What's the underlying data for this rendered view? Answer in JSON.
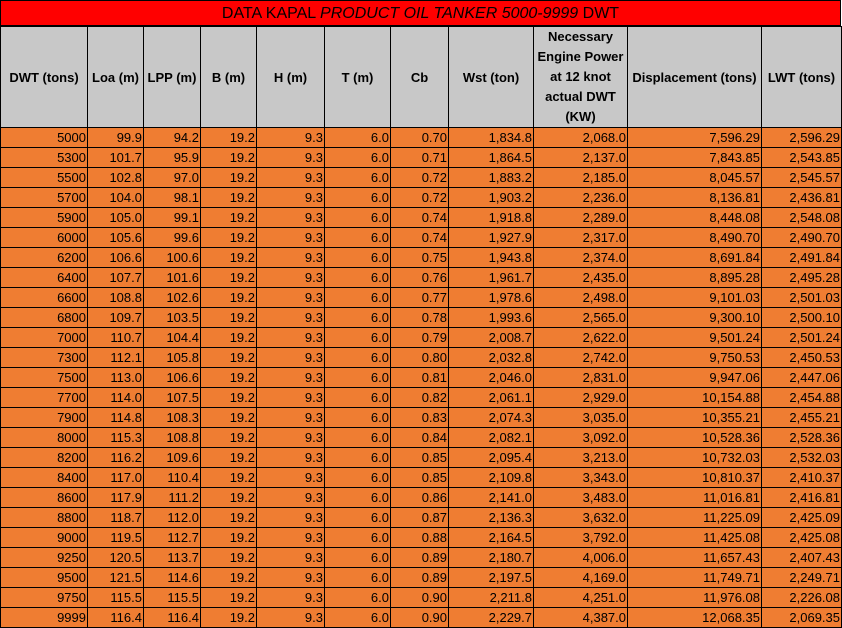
{
  "title": {
    "prefix": "DATA KAPAL ",
    "italic": "PRODUCT OIL TANKER 5000-9999",
    "suffix": " DWT"
  },
  "columns": [
    "DWT (tons)",
    "Loa (m)",
    "LPP (m)",
    "B (m)",
    "H (m)",
    "T (m)",
    "Cb",
    "Wst (ton)",
    "Necessary Engine Power at 12 knot actual DWT (KW)",
    "Displacement (tons)",
    "LWT (tons)"
  ],
  "rows": [
    [
      "5000",
      "99.9",
      "94.2",
      "19.2",
      "9.3",
      "6.0",
      "0.70",
      "1,834.8",
      "2,068.0",
      "7,596.29",
      "2,596.29"
    ],
    [
      "5300",
      "101.7",
      "95.9",
      "19.2",
      "9.3",
      "6.0",
      "0.71",
      "1,864.5",
      "2,137.0",
      "7,843.85",
      "2,543.85"
    ],
    [
      "5500",
      "102.8",
      "97.0",
      "19.2",
      "9.3",
      "6.0",
      "0.72",
      "1,883.2",
      "2,185.0",
      "8,045.57",
      "2,545.57"
    ],
    [
      "5700",
      "104.0",
      "98.1",
      "19.2",
      "9.3",
      "6.0",
      "0.72",
      "1,903.2",
      "2,236.0",
      "8,136.81",
      "2,436.81"
    ],
    [
      "5900",
      "105.0",
      "99.1",
      "19.2",
      "9.3",
      "6.0",
      "0.74",
      "1,918.8",
      "2,289.0",
      "8,448.08",
      "2,548.08"
    ],
    [
      "6000",
      "105.6",
      "99.6",
      "19.2",
      "9.3",
      "6.0",
      "0.74",
      "1,927.9",
      "2,317.0",
      "8,490.70",
      "2,490.70"
    ],
    [
      "6200",
      "106.6",
      "100.6",
      "19.2",
      "9.3",
      "6.0",
      "0.75",
      "1,943.8",
      "2,374.0",
      "8,691.84",
      "2,491.84"
    ],
    [
      "6400",
      "107.7",
      "101.6",
      "19.2",
      "9.3",
      "6.0",
      "0.76",
      "1,961.7",
      "2,435.0",
      "8,895.28",
      "2,495.28"
    ],
    [
      "6600",
      "108.8",
      "102.6",
      "19.2",
      "9.3",
      "6.0",
      "0.77",
      "1,978.6",
      "2,498.0",
      "9,101.03",
      "2,501.03"
    ],
    [
      "6800",
      "109.7",
      "103.5",
      "19.2",
      "9.3",
      "6.0",
      "0.78",
      "1,993.6",
      "2,565.0",
      "9,300.10",
      "2,500.10"
    ],
    [
      "7000",
      "110.7",
      "104.4",
      "19.2",
      "9.3",
      "6.0",
      "0.79",
      "2,008.7",
      "2,622.0",
      "9,501.24",
      "2,501.24"
    ],
    [
      "7300",
      "112.1",
      "105.8",
      "19.2",
      "9.3",
      "6.0",
      "0.80",
      "2,032.8",
      "2,742.0",
      "9,750.53",
      "2,450.53"
    ],
    [
      "7500",
      "113.0",
      "106.6",
      "19.2",
      "9.3",
      "6.0",
      "0.81",
      "2,046.0",
      "2,831.0",
      "9,947.06",
      "2,447.06"
    ],
    [
      "7700",
      "114.0",
      "107.5",
      "19.2",
      "9.3",
      "6.0",
      "0.82",
      "2,061.1",
      "2,929.0",
      "10,154.88",
      "2,454.88"
    ],
    [
      "7900",
      "114.8",
      "108.3",
      "19.2",
      "9.3",
      "6.0",
      "0.83",
      "2,074.3",
      "3,035.0",
      "10,355.21",
      "2,455.21"
    ],
    [
      "8000",
      "115.3",
      "108.8",
      "19.2",
      "9.3",
      "6.0",
      "0.84",
      "2,082.1",
      "3,092.0",
      "10,528.36",
      "2,528.36"
    ],
    [
      "8200",
      "116.2",
      "109.6",
      "19.2",
      "9.3",
      "6.0",
      "0.85",
      "2,095.4",
      "3,213.0",
      "10,732.03",
      "2,532.03"
    ],
    [
      "8400",
      "117.0",
      "110.4",
      "19.2",
      "9.3",
      "6.0",
      "0.85",
      "2,109.8",
      "3,343.0",
      "10,810.37",
      "2,410.37"
    ],
    [
      "8600",
      "117.9",
      "111.2",
      "19.2",
      "9.3",
      "6.0",
      "0.86",
      "2,141.0",
      "3,483.0",
      "11,016.81",
      "2,416.81"
    ],
    [
      "8800",
      "118.7",
      "112.0",
      "19.2",
      "9.3",
      "6.0",
      "0.87",
      "2,136.3",
      "3,632.0",
      "11,225.09",
      "2,425.09"
    ],
    [
      "9000",
      "119.5",
      "112.7",
      "19.2",
      "9.3",
      "6.0",
      "0.88",
      "2,164.5",
      "3,792.0",
      "11,425.08",
      "2,425.08"
    ],
    [
      "9250",
      "120.5",
      "113.7",
      "19.2",
      "9.3",
      "6.0",
      "0.89",
      "2,180.7",
      "4,006.0",
      "11,657.43",
      "2,407.43"
    ],
    [
      "9500",
      "121.5",
      "114.6",
      "19.2",
      "9.3",
      "6.0",
      "0.89",
      "2,197.5",
      "4,169.0",
      "11,749.71",
      "2,249.71"
    ],
    [
      "9750",
      "115.5",
      "115.5",
      "19.2",
      "9.3",
      "6.0",
      "0.90",
      "2,211.8",
      "4,251.0",
      "11,976.08",
      "2,226.08"
    ],
    [
      "9999",
      "116.4",
      "116.4",
      "19.2",
      "9.3",
      "6.0",
      "0.90",
      "2,229.7",
      "4,387.0",
      "12,068.35",
      "2,069.35"
    ]
  ],
  "colors": {
    "title_bg": "#ff0000",
    "header_bg": "#c8c8c8",
    "cell_bg": "#ef7d32",
    "grid": "#000000"
  }
}
